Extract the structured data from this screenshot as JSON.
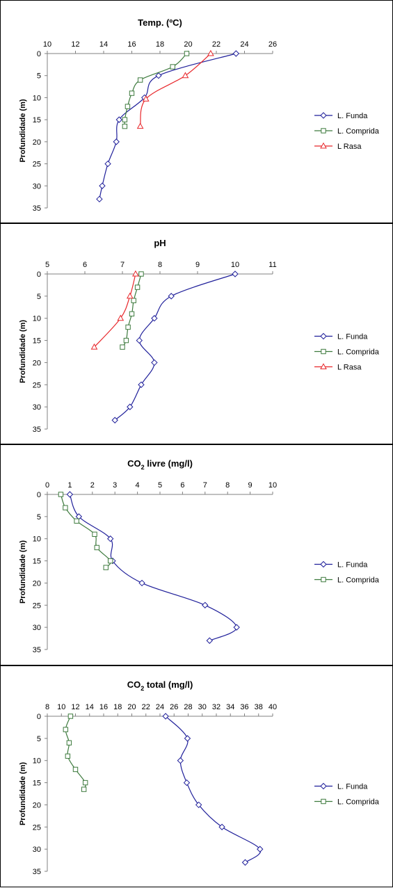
{
  "colors": {
    "L. Funda": "#1f1f9a",
    "L. Comprida": "#3d7a3d",
    "L Rasa": "#e8262a"
  },
  "markers": {
    "L. Funda": "diamond",
    "L. Comprida": "square",
    "L Rasa": "triangle"
  },
  "chart_data": [
    {
      "type": "line",
      "title": "Temp. (ºC)",
      "title_main": "Temp. (ºC)",
      "title_sub": "",
      "title_rest": "",
      "ylabel": "Profundidade (m)",
      "xlim": [
        10,
        26
      ],
      "xticks": [
        10,
        12,
        14,
        16,
        18,
        20,
        22,
        24,
        26
      ],
      "ylim": [
        0,
        35
      ],
      "yticks": [
        0,
        5,
        10,
        15,
        20,
        25,
        30,
        35
      ],
      "y_inverted": true,
      "x_axis_position": "top",
      "grid": false,
      "legend_position": "right",
      "series": [
        {
          "name": "L. Funda",
          "x": [
            23.4,
            17.9,
            16.9,
            15.1,
            14.9,
            14.3,
            13.9,
            13.7
          ],
          "y": [
            0,
            5,
            10,
            15,
            20,
            25,
            30,
            33
          ]
        },
        {
          "name": "L. Comprida",
          "x": [
            19.9,
            18.9,
            16.6,
            16.0,
            15.7,
            15.5,
            15.5
          ],
          "y": [
            0,
            3,
            6,
            9,
            12,
            15,
            16.5
          ]
        },
        {
          "name": "L Rasa",
          "x": [
            21.6,
            19.8,
            17.0,
            16.6
          ],
          "y": [
            0,
            5,
            10.3,
            16.5
          ]
        }
      ]
    },
    {
      "type": "line",
      "title": "pH",
      "title_main": "pH",
      "title_sub": "",
      "title_rest": "",
      "ylabel": "Profundidade (m)",
      "xlim": [
        5,
        11
      ],
      "xticks": [
        5,
        6,
        7,
        8,
        9,
        10,
        11
      ],
      "ylim": [
        0,
        35
      ],
      "yticks": [
        0,
        5,
        10,
        15,
        20,
        25,
        30,
        35
      ],
      "y_inverted": true,
      "x_axis_position": "top",
      "grid": false,
      "legend_position": "right",
      "series": [
        {
          "name": "L. Funda",
          "x": [
            10.0,
            8.3,
            7.85,
            7.45,
            7.85,
            7.5,
            7.2,
            6.8
          ],
          "y": [
            0,
            5,
            10,
            15,
            20,
            25,
            30,
            33
          ]
        },
        {
          "name": "L. Comprida",
          "x": [
            7.5,
            7.4,
            7.3,
            7.25,
            7.15,
            7.1,
            7.0
          ],
          "y": [
            0,
            3,
            6,
            9,
            12,
            15,
            16.5
          ]
        },
        {
          "name": "L Rasa",
          "x": [
            7.35,
            7.2,
            6.95,
            6.25
          ],
          "y": [
            0,
            5,
            10,
            16.5
          ]
        }
      ]
    },
    {
      "type": "line",
      "title": "CO2 livre (mg/l)",
      "title_main": "CO",
      "title_sub": "2",
      "title_rest": " livre (mg/l)",
      "ylabel": "Profundidade (m)",
      "xlim": [
        0,
        10
      ],
      "xticks": [
        0,
        1,
        2,
        3,
        4,
        5,
        6,
        7,
        8,
        9,
        10
      ],
      "ylim": [
        0,
        35
      ],
      "yticks": [
        0,
        5,
        10,
        15,
        20,
        25,
        30,
        35
      ],
      "y_inverted": true,
      "x_axis_position": "top",
      "grid": false,
      "legend_position": "right",
      "series": [
        {
          "name": "L. Funda",
          "x": [
            1.0,
            1.4,
            2.8,
            2.9,
            4.2,
            7.0,
            8.4,
            7.2
          ],
          "y": [
            0,
            5,
            10,
            15,
            20,
            25,
            30,
            33
          ]
        },
        {
          "name": "L. Comprida",
          "x": [
            0.6,
            0.8,
            1.3,
            2.1,
            2.2,
            2.8,
            2.6
          ],
          "y": [
            0,
            3,
            6,
            9,
            12,
            15,
            16.5
          ]
        }
      ]
    },
    {
      "type": "line",
      "title": "CO2 total (mg/l)",
      "title_main": "CO",
      "title_sub": "2",
      "title_rest": " total (mg/l)",
      "ylabel": "Profundidade (m)",
      "xlim": [
        8,
        40
      ],
      "xticks": [
        8,
        10,
        12,
        14,
        16,
        18,
        20,
        22,
        24,
        26,
        28,
        30,
        32,
        34,
        36,
        38,
        40
      ],
      "ylim": [
        0,
        35
      ],
      "yticks": [
        0,
        5,
        10,
        15,
        20,
        25,
        30,
        35
      ],
      "y_inverted": true,
      "x_axis_position": "top",
      "grid": false,
      "legend_position": "right",
      "series": [
        {
          "name": "L. Funda",
          "x": [
            24.8,
            27.9,
            26.9,
            27.8,
            29.5,
            32.8,
            38.2,
            36.1
          ],
          "y": [
            0,
            5,
            10,
            15,
            20,
            25,
            30,
            33
          ]
        },
        {
          "name": "L. Comprida",
          "x": [
            11.3,
            10.6,
            11.1,
            10.9,
            12.0,
            13.4,
            13.2
          ],
          "y": [
            0,
            3,
            6,
            9,
            12,
            15,
            16.5
          ]
        }
      ]
    }
  ]
}
